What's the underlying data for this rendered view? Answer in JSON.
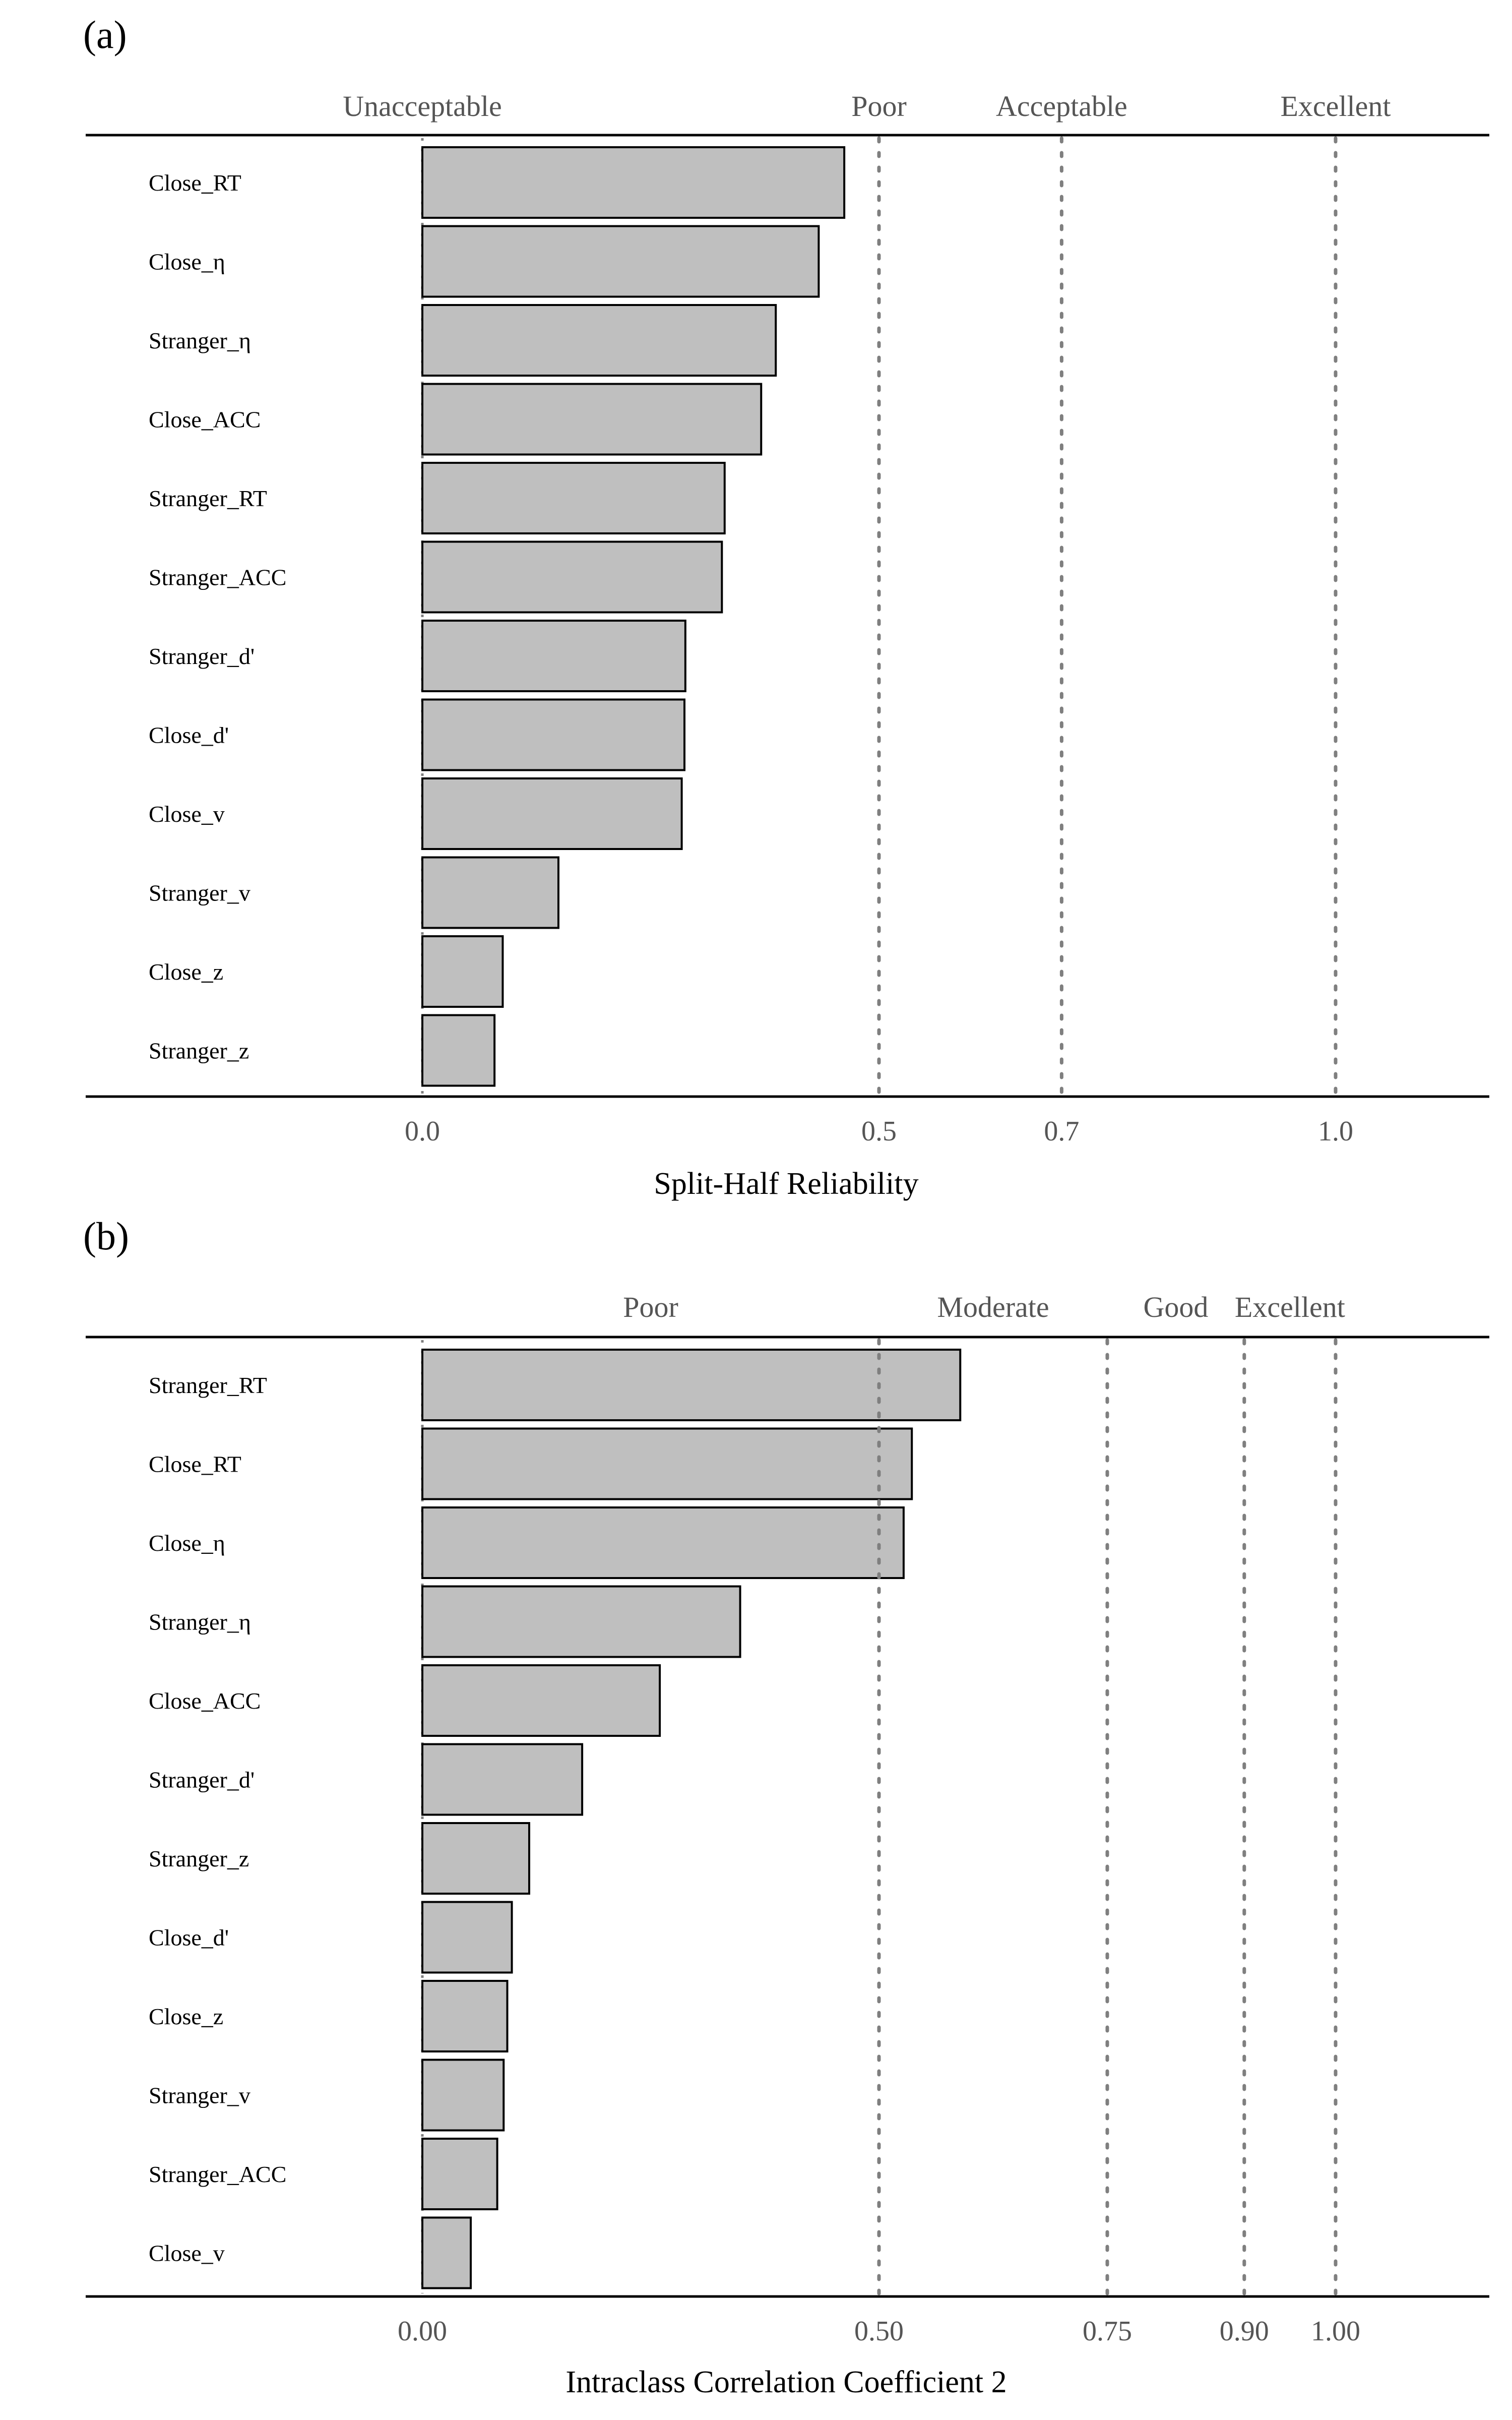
{
  "chart_data": [
    {
      "type": "bar",
      "orientation": "horizontal",
      "panel_label": "(a)",
      "xlabel": "Split-Half Reliability",
      "xlim": [
        -0.37,
        1.17
      ],
      "xticks": [
        0.0,
        0.5,
        0.7,
        1.0
      ],
      "xtick_labels": [
        "0.0",
        "0.5",
        "0.7",
        "1.0"
      ],
      "reference_lines": [
        0.5,
        0.7,
        1.0
      ],
      "zero_line": 0.0,
      "regions": [
        {
          "label": "Unacceptable",
          "at": 0.0
        },
        {
          "label": "Poor",
          "at": 0.5
        },
        {
          "label": "Acceptable",
          "at": 0.7
        },
        {
          "label": "Excellent",
          "at": 1.0
        }
      ],
      "categories": [
        "Close_RT",
        "Close_η",
        "Stranger_η",
        "Close_ACC",
        "Stranger_RT",
        "Stranger_ACC",
        "Stranger_d'",
        "Close_d'",
        "Close_v",
        "Stranger_v",
        "Close_z",
        "Stranger_z"
      ],
      "values": [
        0.462,
        0.434,
        0.387,
        0.371,
        0.331,
        0.328,
        0.288,
        0.287,
        0.284,
        0.149,
        0.088,
        0.079
      ],
      "bar_color": "#bfbfbf",
      "grid": false
    },
    {
      "type": "bar",
      "orientation": "horizontal",
      "panel_label": "(b)",
      "xlabel": "Intraclass Correlation Coefficient 2",
      "xlim": [
        -0.37,
        1.17
      ],
      "xticks": [
        0.0,
        0.5,
        0.75,
        0.9,
        1.0
      ],
      "xtick_labels": [
        "0.00",
        "0.50",
        "0.75",
        "0.90",
        "1.00"
      ],
      "reference_lines": [
        0.5,
        0.75,
        0.9,
        1.0
      ],
      "zero_line": 0.0,
      "regions": [
        {
          "label": "Poor",
          "at": 0.25
        },
        {
          "label": "Moderate",
          "at": 0.625
        },
        {
          "label": "Good",
          "at": 0.825
        },
        {
          "label": "Excellent",
          "at": 0.95
        }
      ],
      "categories": [
        "Stranger_RT",
        "Close_RT",
        "Close_η",
        "Stranger_η",
        "Close_ACC",
        "Stranger_d'",
        "Stranger_z",
        "Close_d'",
        "Close_z",
        "Stranger_v",
        "Stranger_ACC",
        "Close_v"
      ],
      "values": [
        0.589,
        0.536,
        0.527,
        0.348,
        0.26,
        0.175,
        0.117,
        0.098,
        0.093,
        0.089,
        0.082,
        0.053
      ],
      "bar_color": "#bfbfbf",
      "grid": false
    }
  ]
}
